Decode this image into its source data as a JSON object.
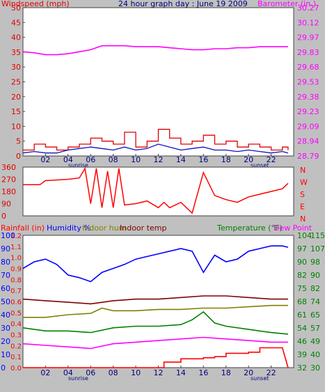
{
  "colors": {
    "windspeed": "#e00000",
    "wind_avg": "#1010c0",
    "barometer": "#ff00ff",
    "direction": "#ff0000",
    "rainfall": "#ff0000",
    "humidity": "#0000ff",
    "indoor_hum": "#808000",
    "indoor_temp": "#800000",
    "temperature": "#008000",
    "dew_point": "#ff00ff",
    "sunlabel": "#000080"
  },
  "chart_data": [
    {
      "type": "line",
      "title": "24 hour graph day : June 19 2009",
      "ylabel_left": "Windspeed (mph)",
      "ylabel_right": "Barometer (in.)",
      "ylim_left": [
        0,
        50
      ],
      "ylim_right": [
        28.79,
        30.27
      ],
      "yticks_left": [
        "0",
        "5",
        "10",
        "15",
        "20",
        "25",
        "30",
        "35",
        "40",
        "45",
        "50"
      ],
      "yticks_right": [
        "28.79",
        "28.94",
        "29.09",
        "29.23",
        "29.38",
        "29.53",
        "29.68",
        "29.83",
        "29.97",
        "30.12",
        "30.27"
      ],
      "xticks": [
        "02",
        "04",
        "06",
        "08",
        "10",
        "12",
        "14",
        "16",
        "18",
        "20",
        "22"
      ],
      "sunrise_label": "sunrise",
      "sunset_label": "sunset",
      "sunrise_hour": 5.4,
      "sunset_hour": 21.0,
      "series": [
        {
          "name": "Windspeed (mph)",
          "x": [
            0,
            1,
            2,
            3,
            4,
            5,
            6,
            7,
            8,
            9,
            10,
            11,
            12,
            13,
            14,
            15,
            16,
            17,
            18,
            19,
            20,
            21,
            22,
            23,
            23.5
          ],
          "values": [
            2,
            4,
            3,
            2,
            3,
            4,
            6,
            5,
            4,
            8,
            3,
            5,
            9,
            6,
            4,
            5,
            7,
            4,
            5,
            3,
            4,
            3,
            2,
            3,
            2
          ]
        },
        {
          "name": "Wind average",
          "x": [
            0,
            1,
            2,
            3,
            4,
            5,
            6,
            7,
            8,
            9,
            10,
            11,
            12,
            13,
            14,
            15,
            16,
            17,
            18,
            19,
            20,
            21,
            22,
            23,
            23.5
          ],
          "values": [
            1,
            1.5,
            1,
            1,
            2,
            2.5,
            3,
            2.5,
            2,
            3,
            2,
            2.5,
            4,
            3,
            2,
            2.5,
            3,
            2,
            2,
            1.5,
            2,
            1.5,
            1,
            1.5,
            1
          ]
        },
        {
          "name": "Barometer (in.)",
          "x": [
            0,
            1,
            2,
            3,
            4,
            5,
            6,
            7,
            8,
            9,
            10,
            11,
            12,
            13,
            14,
            15,
            16,
            17,
            18,
            19,
            20,
            21,
            22,
            23,
            23.5
          ],
          "values": [
            29.83,
            29.82,
            29.8,
            29.8,
            29.81,
            29.83,
            29.85,
            29.89,
            29.89,
            29.89,
            29.88,
            29.88,
            29.88,
            29.87,
            29.86,
            29.85,
            29.85,
            29.86,
            29.86,
            29.87,
            29.87,
            29.88,
            29.88,
            29.88,
            29.88
          ]
        }
      ]
    },
    {
      "type": "line",
      "ylabel_right": "N W S E N",
      "direction_letters": [
        "N",
        "W",
        "S",
        "E",
        "N"
      ],
      "ylim": [
        0,
        360
      ],
      "yticks": [
        "0",
        "90",
        "180",
        "270",
        "360"
      ],
      "series": [
        {
          "name": "Wind direction",
          "x": [
            0,
            1.5,
            2,
            3,
            4,
            5,
            5.5,
            6,
            6.5,
            7,
            7.5,
            8,
            8.5,
            9,
            10,
            11,
            12,
            12.5,
            13,
            14,
            15,
            16,
            17,
            18,
            19,
            20,
            21,
            22,
            23,
            23.5
          ],
          "values": [
            230,
            230,
            260,
            265,
            270,
            280,
            350,
            90,
            350,
            60,
            330,
            60,
            350,
            80,
            90,
            110,
            60,
            100,
            60,
            100,
            20,
            320,
            150,
            120,
            100,
            140,
            160,
            180,
            200,
            240
          ]
        }
      ]
    },
    {
      "type": "line",
      "ylabel_left": "Rainfall (in)",
      "legend_labels": [
        "Humidity %",
        "Indoor hum",
        "Indoor temp"
      ],
      "ylabel_right": "Temperature (°F)",
      "ylabel_right2": "Dew Point",
      "ylim_rain": [
        0,
        1.2
      ],
      "ylim_hum": [
        0,
        100
      ],
      "ylim_temp": [
        32,
        115
      ],
      "yticks_rain": [
        "0.0",
        "0.1",
        "0.2",
        "0.3",
        "0.4",
        "0.5",
        "0.6",
        "0.7",
        "0.8",
        "0.9",
        "1.0",
        "1.1",
        "1.2"
      ],
      "yticks_hum": [
        "0",
        "10",
        "20",
        "30",
        "40",
        "50",
        "60",
        "70",
        "80",
        "90",
        "100"
      ],
      "yticks_temp": [
        "32",
        "39",
        "46",
        "54",
        "61",
        "68",
        "75",
        "82",
        "90",
        "97",
        "104"
      ],
      "yticks_temp2": [
        "30",
        "40",
        "49",
        "57",
        "65",
        "74",
        "82",
        "90",
        "98",
        "107",
        "115"
      ],
      "series": [
        {
          "name": "Humidity %",
          "x": [
            0,
            1,
            2,
            3,
            4,
            5,
            6,
            7,
            8,
            9,
            10,
            11,
            12,
            13,
            14,
            15,
            16,
            17,
            18,
            19,
            20,
            21,
            22,
            23,
            23.5
          ],
          "values": [
            75,
            80,
            82,
            78,
            70,
            68,
            65,
            72,
            75,
            78,
            82,
            84,
            86,
            88,
            90,
            88,
            72,
            85,
            80,
            82,
            88,
            90,
            92,
            92,
            91
          ]
        },
        {
          "name": "Indoor hum",
          "x": [
            0,
            2,
            4,
            6,
            7,
            8,
            10,
            12,
            14,
            16,
            18,
            20,
            22,
            23.5
          ],
          "values": [
            38,
            38,
            40,
            41,
            45,
            43,
            43,
            44,
            44,
            45,
            45,
            46,
            47,
            47
          ]
        },
        {
          "name": "Indoor temp",
          "x": [
            0,
            2,
            4,
            6,
            8,
            10,
            12,
            14,
            16,
            18,
            20,
            22,
            23.5
          ],
          "values": [
            75,
            74,
            73,
            72,
            74,
            75,
            75,
            76,
            77,
            77,
            76,
            75,
            75
          ]
        },
        {
          "name": "Temperature (°F)",
          "x": [
            0,
            2,
            4,
            6,
            8,
            10,
            12,
            14,
            15,
            16,
            17,
            18,
            20,
            22,
            23.5
          ],
          "values": [
            57,
            55,
            55,
            54,
            57,
            58,
            58,
            59,
            62,
            67,
            60,
            58,
            56,
            54,
            53
          ]
        },
        {
          "name": "Dew Point",
          "x": [
            0,
            2,
            4,
            6,
            8,
            10,
            12,
            14,
            16,
            18,
            20,
            22,
            23.5
          ],
          "values": [
            47,
            46,
            45,
            44,
            47,
            48,
            49,
            50,
            51,
            50,
            49,
            48,
            48
          ]
        },
        {
          "name": "Rainfall (in)",
          "x": [
            0,
            12,
            12.5,
            14,
            16,
            17,
            18,
            20,
            21,
            22,
            23,
            23.5
          ],
          "values": [
            0,
            0,
            0.05,
            0.08,
            0.09,
            0.1,
            0.13,
            0.14,
            0.18,
            0.18,
            0.18,
            0.0
          ]
        }
      ]
    }
  ]
}
